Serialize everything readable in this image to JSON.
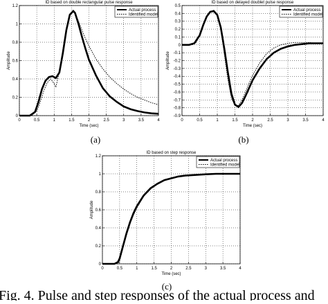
{
  "chart_data": [
    {
      "id": "a",
      "type": "line",
      "title": "ID based on double rectangular pulse response",
      "xlabel": "Time (sec)",
      "ylabel": "Amplitude",
      "xlim": [
        0,
        4
      ],
      "ylim": [
        0,
        1.2
      ],
      "xticks": [
        "0",
        "0.5",
        "1",
        "1.5",
        "2",
        "2.5",
        "3",
        "3.5",
        "4"
      ],
      "yticks": [
        "0",
        "0.2",
        "0.4",
        "0.6",
        "0.8",
        "1",
        "1.2"
      ],
      "grid": true,
      "legend": "top-right",
      "caption": "(a)",
      "series": [
        {
          "name": "Actual process",
          "style": "thick",
          "x": [
            0,
            0.3,
            0.45,
            0.55,
            0.65,
            0.75,
            0.85,
            0.95,
            1.05,
            1.15,
            1.25,
            1.35,
            1.45,
            1.55,
            1.6,
            1.7,
            1.8,
            1.9,
            2.0,
            2.2,
            2.4,
            2.6,
            2.8,
            3.0,
            3.2,
            3.4,
            3.6,
            3.8,
            4.0
          ],
          "y": [
            0,
            0,
            0.04,
            0.15,
            0.29,
            0.38,
            0.42,
            0.43,
            0.41,
            0.47,
            0.68,
            0.93,
            1.1,
            1.14,
            1.12,
            1.0,
            0.86,
            0.73,
            0.61,
            0.44,
            0.3,
            0.21,
            0.15,
            0.1,
            0.07,
            0.05,
            0.035,
            0.025,
            0.02
          ]
        },
        {
          "name": "Identified model",
          "style": "dotted",
          "x": [
            0,
            0.35,
            0.5,
            0.6,
            0.7,
            0.8,
            0.9,
            1.0,
            1.05,
            1.15,
            1.25,
            1.35,
            1.45,
            1.55,
            1.6,
            1.7,
            1.8,
            1.9,
            2.0,
            2.2,
            2.4,
            2.6,
            2.8,
            3.0,
            3.2,
            3.4,
            3.6,
            3.8,
            4.0
          ],
          "y": [
            0,
            0,
            0.05,
            0.15,
            0.27,
            0.36,
            0.4,
            0.35,
            0.31,
            0.48,
            0.72,
            0.95,
            1.09,
            1.13,
            1.12,
            1.03,
            0.93,
            0.84,
            0.76,
            0.62,
            0.51,
            0.42,
            0.35,
            0.29,
            0.24,
            0.2,
            0.17,
            0.14,
            0.12
          ]
        }
      ]
    },
    {
      "id": "b",
      "type": "line",
      "title": "ID based on delayed doublet pulse response",
      "xlabel": "Time (sec)",
      "ylabel": "Amplitude",
      "xlim": [
        0,
        4
      ],
      "ylim": [
        -0.9,
        0.5
      ],
      "xticks": [
        "0",
        "0.5",
        "1",
        "1.5",
        "2",
        "2.5",
        "3",
        "3.5",
        "4"
      ],
      "yticks": [
        "-0.9",
        "-0.8",
        "-0.7",
        "-0.6",
        "-0.5",
        "-0.4",
        "-0.3",
        "-0.2",
        "-0.1",
        "0",
        "0.1",
        "0.2",
        "0.3",
        "0.4",
        "0.5"
      ],
      "grid": true,
      "legend": "top-right",
      "caption": "(b)",
      "series": [
        {
          "name": "Actual process",
          "style": "thick",
          "x": [
            0,
            0.2,
            0.35,
            0.5,
            0.6,
            0.7,
            0.8,
            0.9,
            1.0,
            1.1,
            1.2,
            1.3,
            1.4,
            1.5,
            1.6,
            1.7,
            1.8,
            1.9,
            2.0,
            2.2,
            2.4,
            2.6,
            2.8,
            3.0,
            3.2,
            3.4,
            3.6,
            3.8,
            4.0
          ],
          "y": [
            0,
            0,
            0.02,
            0.12,
            0.25,
            0.36,
            0.42,
            0.43,
            0.38,
            0.22,
            -0.05,
            -0.35,
            -0.62,
            -0.76,
            -0.79,
            -0.74,
            -0.65,
            -0.55,
            -0.45,
            -0.3,
            -0.18,
            -0.1,
            -0.05,
            -0.02,
            0,
            0.01,
            0.02,
            0.02,
            0.02
          ]
        },
        {
          "name": "Identified model",
          "style": "dotted",
          "x": [
            0,
            0.25,
            0.4,
            0.5,
            0.6,
            0.7,
            0.8,
            0.9,
            1.0,
            1.1,
            1.2,
            1.3,
            1.4,
            1.5,
            1.6,
            1.7,
            1.8,
            1.9,
            2.0,
            2.2,
            2.4,
            2.6,
            2.8,
            3.0,
            3.2,
            3.4,
            3.6,
            3.8,
            4.0
          ],
          "y": [
            0,
            0,
            0.03,
            0.12,
            0.24,
            0.35,
            0.42,
            0.44,
            0.39,
            0.2,
            -0.12,
            -0.44,
            -0.68,
            -0.77,
            -0.77,
            -0.7,
            -0.6,
            -0.49,
            -0.39,
            -0.23,
            -0.11,
            -0.04,
            0,
            0.02,
            0.03,
            0.03,
            0.03,
            0.02,
            0.02
          ]
        }
      ]
    },
    {
      "id": "c",
      "type": "line",
      "title": "ID based on step response",
      "xlabel": "Time (sec)",
      "ylabel": "Amplitude",
      "xlim": [
        0,
        4
      ],
      "ylim": [
        0,
        1.2
      ],
      "xticks": [
        "0",
        "0.5",
        "1",
        "1.5",
        "2",
        "2.5",
        "3",
        "3.5",
        "4"
      ],
      "yticks": [
        "0",
        "0.2",
        "0.4",
        "0.6",
        "0.8",
        "1",
        "1.2"
      ],
      "grid": true,
      "legend": "top-right",
      "caption": "(c)",
      "series": [
        {
          "name": "Actual process",
          "style": "thick",
          "x": [
            0,
            0.35,
            0.45,
            0.5,
            0.6,
            0.7,
            0.8,
            0.9,
            1.0,
            1.2,
            1.4,
            1.6,
            1.8,
            2.0,
            2.2,
            2.4,
            2.6,
            2.8,
            3.0,
            3.3,
            3.6,
            4.0
          ],
          "y": [
            0,
            0,
            0.02,
            0.06,
            0.2,
            0.34,
            0.46,
            0.56,
            0.64,
            0.76,
            0.84,
            0.89,
            0.93,
            0.95,
            0.97,
            0.98,
            0.985,
            0.99,
            0.995,
            1.0,
            1.0,
            1.0
          ]
        },
        {
          "name": "Identified model",
          "style": "dotted",
          "x": [
            0,
            0.45,
            0.5,
            0.6,
            0.7,
            0.8,
            0.9,
            1.0,
            1.2,
            1.4,
            1.6,
            1.8,
            2.0,
            2.2,
            2.4,
            2.6,
            2.8,
            3.0,
            3.3,
            3.6,
            4.0
          ],
          "y": [
            0,
            0,
            0.03,
            0.18,
            0.32,
            0.44,
            0.54,
            0.62,
            0.75,
            0.83,
            0.89,
            0.93,
            0.955,
            0.97,
            0.98,
            0.985,
            0.99,
            0.995,
            1.0,
            1.0,
            1.0
          ]
        }
      ]
    }
  ],
  "figure_caption": "Fig. 4. Pulse and step responses of the actual process and"
}
